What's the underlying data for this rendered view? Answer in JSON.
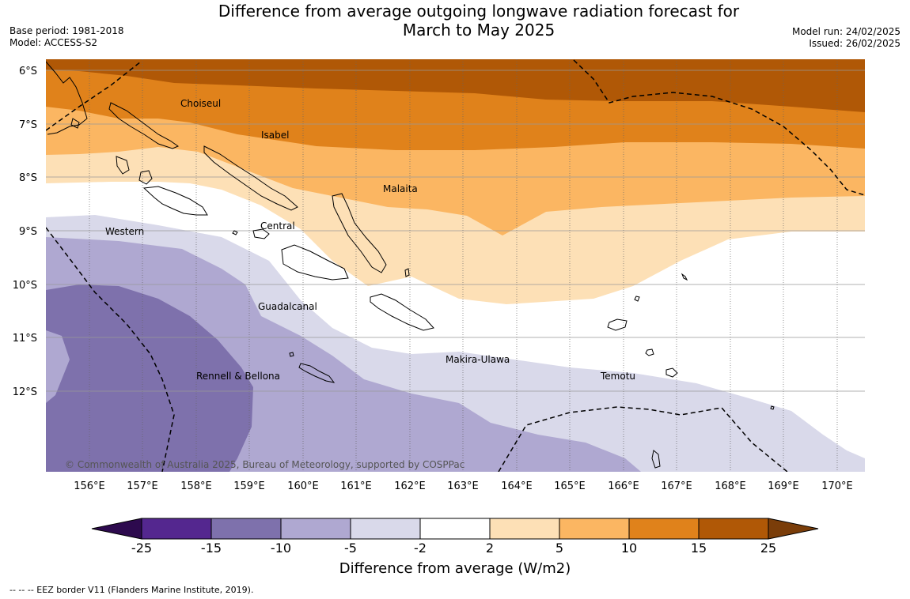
{
  "title": {
    "line1": "Difference from average outgoing longwave radiation forecast for",
    "line2": "March to May 2025"
  },
  "meta_left": {
    "base_period": "Base period: 1981-2018",
    "model": "Model: ACCESS-S2"
  },
  "meta_right": {
    "model_run": "Model run: 24/02/2025",
    "issued": "Issued: 26/02/2025"
  },
  "map": {
    "lat_labels": [
      "6°S",
      "7°S",
      "8°S",
      "9°S",
      "10°S",
      "11°S",
      "12°S"
    ],
    "lon_labels": [
      "156°E",
      "157°E",
      "158°E",
      "159°E",
      "160°E",
      "161°E",
      "162°E",
      "163°E",
      "164°E",
      "165°E",
      "166°E",
      "167°E",
      "168°E",
      "169°E",
      "170°E"
    ],
    "province_labels": [
      "Choiseul",
      "Isabel",
      "Malaita",
      "Western",
      "Central",
      "Guadalcanal",
      "Makira-Ulawa",
      "Temotu",
      "Rennell & Bellona"
    ],
    "copyright": "© Commonwealth of Australia 2025, Bureau of Meteorology, supported by COSPPac"
  },
  "colorbar": {
    "labels": [
      "-25",
      "-15",
      "-10",
      "-5",
      "-2",
      "2",
      "5",
      "10",
      "15",
      "25"
    ],
    "colors": [
      "#2d0a4e",
      "#54278f",
      "#7e71ac",
      "#afa8d1",
      "#d9d9ea",
      "#ffffff",
      "#fde0b6",
      "#fbb662",
      "#e0821b",
      "#b05806",
      "#7a3d09"
    ],
    "title": "Difference from average (W/m2)"
  },
  "footnote": "--  --  -- EEZ border V11 (Flanders Marine Institute, 2019)."
}
